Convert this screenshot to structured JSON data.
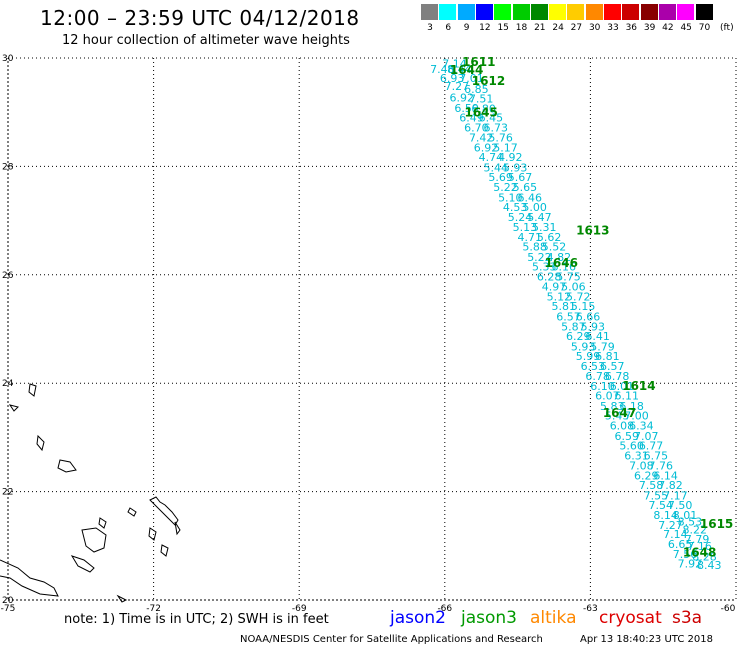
{
  "header": {
    "title": "12:00 – 23:59 UTC 04/12/2018",
    "subtitle": "12 hour collection of altimeter wave heights"
  },
  "legend": {
    "unit": "(ft)",
    "colors": [
      "#808080",
      "#00ffff",
      "#00aaff",
      "#0000ff",
      "#00ff00",
      "#00cc00",
      "#008800",
      "#ffff00",
      "#ffcc00",
      "#ff8800",
      "#ff0000",
      "#cc0000",
      "#880000",
      "#aa00aa",
      "#ff00ff",
      "#000000"
    ],
    "labels": [
      "3",
      "6",
      "9",
      "12",
      "15",
      "18",
      "21",
      "24",
      "27",
      "30",
      "33",
      "36",
      "39",
      "42",
      "45",
      "70"
    ]
  },
  "axes": {
    "lat_labels": [
      "30",
      "28",
      "26",
      "24",
      "22",
      "20"
    ],
    "lat_values": [
      30,
      28,
      26,
      24,
      22,
      20
    ],
    "lon_labels": [
      "-75",
      "-72",
      "-69",
      "-66",
      "-63",
      "-60"
    ],
    "lon_values": [
      -75,
      -72,
      -69,
      -66,
      -63,
      -60
    ]
  },
  "track": {
    "color": "#00bcd4",
    "points": [
      [
        "7.14",
        -65.8,
        29.9
      ],
      [
        "7.46",
        -66.05,
        29.8
      ],
      [
        "8.44",
        -65.7,
        29.8
      ],
      [
        "6.93",
        -65.85,
        29.63
      ],
      [
        "7.01",
        -65.45,
        29.63
      ],
      [
        "7.27",
        -65.75,
        29.48
      ],
      [
        "6.85",
        -65.35,
        29.43
      ],
      [
        "6.92",
        -65.65,
        29.27
      ],
      [
        "7.51",
        -65.25,
        29.25
      ],
      [
        "6.59",
        -65.55,
        29.08
      ],
      [
        "6.80",
        -65.2,
        29.07
      ],
      [
        "6.49",
        -65.45,
        28.9
      ],
      [
        "6.45",
        -65.05,
        28.9
      ],
      [
        "6.70",
        -65.35,
        28.72
      ],
      [
        "6.73",
        -64.95,
        28.72
      ],
      [
        "7.42",
        -65.25,
        28.53
      ],
      [
        "5.76",
        -64.85,
        28.53
      ],
      [
        "6.92",
        -65.15,
        28.35
      ],
      [
        "5.17",
        -64.75,
        28.35
      ],
      [
        "4.74",
        -65.05,
        28.17
      ],
      [
        "4.92",
        -64.65,
        28.17
      ],
      [
        "5.44",
        -64.95,
        27.98
      ],
      [
        "5.93",
        -64.55,
        27.98
      ],
      [
        "5.69",
        -64.85,
        27.8
      ],
      [
        "5.67",
        -64.45,
        27.8
      ],
      [
        "5.22",
        -64.75,
        27.62
      ],
      [
        "5.65",
        -64.35,
        27.62
      ],
      [
        "5.10",
        -64.65,
        27.43
      ],
      [
        "6.46",
        -64.25,
        27.43
      ],
      [
        "4.53",
        -64.55,
        27.25
      ],
      [
        "5.00",
        -64.15,
        27.25
      ],
      [
        "5.24",
        -64.45,
        27.07
      ],
      [
        "5.47",
        -64.05,
        27.07
      ],
      [
        "5.13",
        -64.35,
        26.88
      ],
      [
        "5.31",
        -63.95,
        26.88
      ],
      [
        "4.71",
        -64.25,
        26.7
      ],
      [
        "5.62",
        -63.85,
        26.7
      ],
      [
        "5.88",
        -64.15,
        26.52
      ],
      [
        "5.52",
        -63.75,
        26.52
      ],
      [
        "5.22",
        -64.05,
        26.33
      ],
      [
        "4.82",
        -63.65,
        26.33
      ],
      [
        "5.33",
        -63.95,
        26.15
      ],
      [
        "6.16",
        -63.55,
        26.15
      ],
      [
        "6.28",
        -63.85,
        25.97
      ],
      [
        "5.75",
        -63.45,
        25.97
      ],
      [
        "4.97",
        -63.75,
        25.78
      ],
      [
        "5.06",
        -63.35,
        25.78
      ],
      [
        "5.12",
        -63.65,
        25.6
      ],
      [
        "5.72",
        -63.25,
        25.6
      ],
      [
        "5.81",
        -63.55,
        25.42
      ],
      [
        "5.15",
        -63.15,
        25.42
      ],
      [
        "6.57",
        -63.45,
        25.23
      ],
      [
        "6.66",
        -63.05,
        25.23
      ],
      [
        "5.87",
        -63.35,
        25.05
      ],
      [
        "5.93",
        -62.95,
        25.05
      ],
      [
        "6.29",
        -63.25,
        24.87
      ],
      [
        "6.41",
        -62.85,
        24.87
      ],
      [
        "5.93",
        -63.15,
        24.68
      ],
      [
        "5.79",
        -62.75,
        24.68
      ],
      [
        "5.99",
        -63.05,
        24.5
      ],
      [
        "6.81",
        -62.65,
        24.5
      ],
      [
        "6.53",
        -62.95,
        24.32
      ],
      [
        "6.57",
        -62.55,
        24.32
      ],
      [
        "6.78",
        -62.85,
        24.13
      ],
      [
        "6.78",
        -62.45,
        24.13
      ],
      [
        "6.10",
        -62.75,
        23.95
      ],
      [
        "6.01",
        -62.35,
        23.95
      ],
      [
        "6.07",
        -62.65,
        23.77
      ],
      [
        "6.11",
        -62.25,
        23.77
      ],
      [
        "5.83",
        -62.55,
        23.58
      ],
      [
        "6.18",
        -62.15,
        23.58
      ],
      [
        "5.45",
        -62.45,
        23.4
      ],
      [
        "7.00",
        -62.05,
        23.4
      ],
      [
        "6.08",
        -62.35,
        23.22
      ],
      [
        "6.34",
        -61.95,
        23.22
      ],
      [
        "6.59",
        -62.25,
        23.03
      ],
      [
        "7.07",
        -61.85,
        23.03
      ],
      [
        "5.60",
        -62.15,
        22.85
      ],
      [
        "6.77",
        -61.75,
        22.85
      ],
      [
        "6.31",
        -62.05,
        22.67
      ],
      [
        "6.75",
        -61.65,
        22.67
      ],
      [
        "7.08",
        -61.95,
        22.48
      ],
      [
        "7.76",
        -61.55,
        22.48
      ],
      [
        "6.29",
        -61.85,
        22.3
      ],
      [
        "6.14",
        -61.45,
        22.3
      ],
      [
        "7.58",
        -61.75,
        22.12
      ],
      [
        "7.82",
        -61.35,
        22.12
      ],
      [
        "7.55",
        -61.65,
        21.93
      ],
      [
        "7.17",
        -61.25,
        21.93
      ],
      [
        "7.54",
        -61.55,
        21.75
      ],
      [
        "7.50",
        -61.15,
        21.75
      ],
      [
        "8.14",
        -61.45,
        21.57
      ],
      [
        "8.01",
        -61.05,
        21.57
      ],
      [
        "7.27",
        -61.35,
        21.38
      ],
      [
        "8.53",
        -60.95,
        21.45
      ],
      [
        "8.22",
        -60.85,
        21.3
      ],
      [
        "7.14",
        -61.25,
        21.22
      ],
      [
        "7.79",
        -60.8,
        21.13
      ],
      [
        "6.65",
        -61.15,
        21.03
      ],
      [
        "7.16",
        -60.75,
        21.0
      ],
      [
        "7.56",
        -61.05,
        20.85
      ],
      [
        "8.28",
        -60.65,
        20.8
      ],
      [
        "7.92",
        -60.95,
        20.67
      ],
      [
        "8.43",
        -60.55,
        20.65
      ]
    ]
  },
  "time_labels": {
    "color": "#008800",
    "items": [
      [
        "1611",
        -65.3,
        29.93
      ],
      [
        "1644",
        -65.55,
        29.78
      ],
      [
        "1612",
        -65.1,
        29.58
      ],
      [
        "1645",
        -65.25,
        28.99
      ],
      [
        "1613",
        -62.95,
        26.82
      ],
      [
        "1646",
        -63.6,
        26.22
      ],
      [
        "1614",
        -62.0,
        23.95
      ],
      [
        "1647",
        -62.4,
        23.45
      ],
      [
        "1615",
        -60.4,
        21.4
      ],
      [
        "1648",
        -60.75,
        20.88
      ]
    ]
  },
  "footer": {
    "note": "note: 1) Time is in UTC; 2) SWH is in feet",
    "satellites": [
      {
        "name": "jason2",
        "color": "#0000ff"
      },
      {
        "name": "jason3",
        "color": "#009900"
      },
      {
        "name": "altika",
        "color": "#ff8800"
      },
      {
        "name": "cryosat",
        "color": "#dd0000"
      },
      {
        "name": "s3a",
        "color": "#cc0000"
      }
    ],
    "credit": "NOAA/NESDIS Center for Satellite Applications and Research",
    "timestamp": "Apr 13 18:40:23 UTC 2018"
  }
}
